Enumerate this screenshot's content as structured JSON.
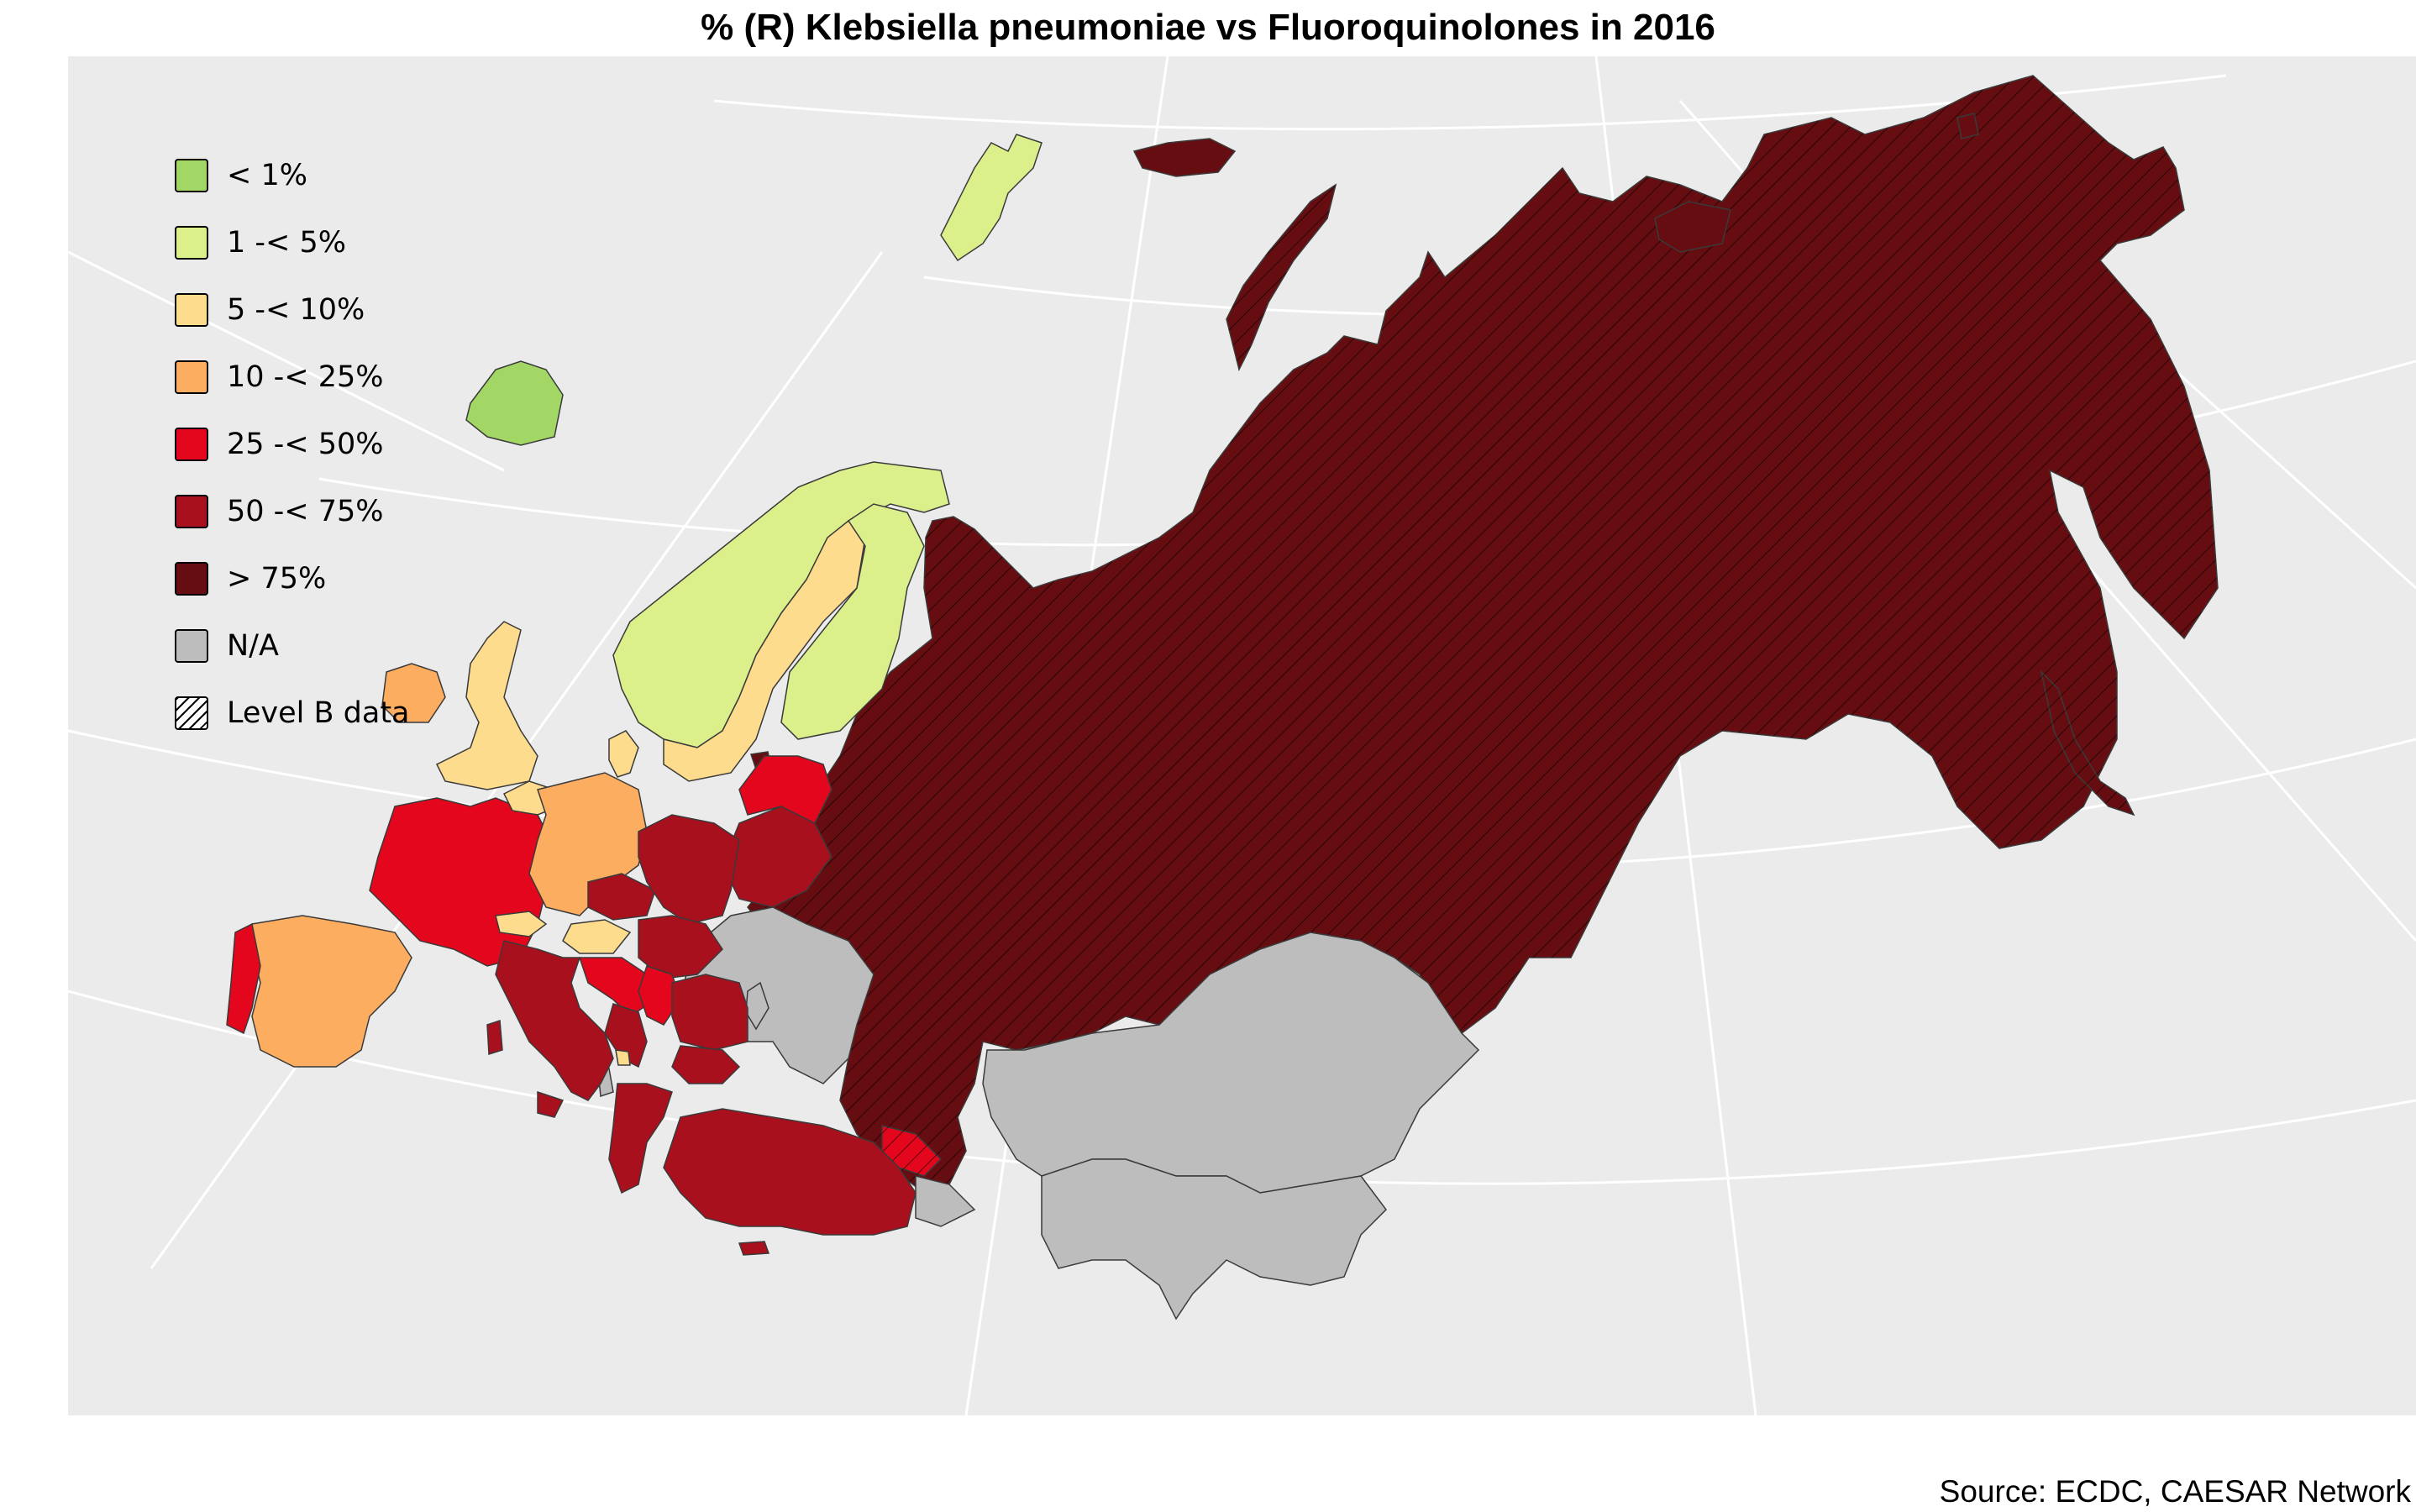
{
  "title": "% (R) Klebsiella pneumoniae vs Fluoroquinolones in 2016",
  "source": "Source: ECDC, CAESAR Network",
  "colors": {
    "panel": "#ebebeb",
    "graticule": "#ffffff",
    "border": "#3a3a3a",
    "lt1": "#a2d765",
    "c1to5": "#dbef8a",
    "c5to10": "#fddc8d",
    "c10to25": "#fdad60",
    "c25to50": "#e3061c",
    "c50to75": "#a8101d",
    "gt75": "#650d10",
    "na": "#bdbdbd"
  },
  "legend": [
    {
      "label": "< 1%",
      "color": "#a2d765"
    },
    {
      "label": "1 -< 5%",
      "color": "#dbef8a"
    },
    {
      "label": "5 -< 10%",
      "color": "#fddc8d"
    },
    {
      "label": "10 -< 25%",
      "color": "#fdad60"
    },
    {
      "label": "25 -< 50%",
      "color": "#e3061c"
    },
    {
      "label": "50 -< 75%",
      "color": "#a8101d"
    },
    {
      "label": "> 75%",
      "color": "#650d10"
    },
    {
      "label": "N/A",
      "color": "#bdbdbd"
    },
    {
      "label": "Level B data",
      "color": "hatch"
    }
  ]
}
